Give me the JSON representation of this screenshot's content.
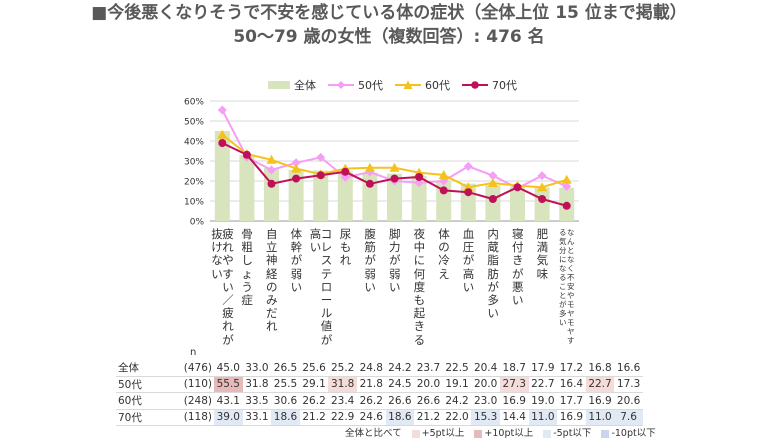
{
  "title_line1": "■今後悪くなりそうで不安を感じている体の症状（全体上位 15 位まで掲載）",
  "title_line2": "50〜79 歳の女性（複数回答）: 476 名",
  "n_header": "n",
  "colors": {
    "all": "#d7e4bd",
    "s50": "#f59ef5",
    "s60": "#f5c21b",
    "s70": "#c0105a",
    "grid": "#d9d9d9"
  },
  "legend": {
    "all": "全体",
    "s50": "50代",
    "s60": "60代",
    "s70": "70代"
  },
  "footer": {
    "base": "全体と比べて",
    "up5": "+5pt以上",
    "up10": "+10pt以上",
    "dn5": "-5pt以下",
    "dn10": "-10pt以下"
  },
  "chart_data": {
    "type": "bar+line",
    "ylim": [
      0,
      60
    ],
    "yticks": [
      "0%",
      "10%",
      "20%",
      "30%",
      "40%",
      "50%",
      "60%"
    ],
    "categories": [
      "疲れやすい／疲れが抜けない",
      "骨粗しょう症",
      "自立神経のみだれ",
      "体幹が弱い",
      "コレステロール値が高い",
      "尿もれ",
      "腹筋が弱い",
      "脚力が弱い",
      "夜中に何度も起きる",
      "体の冷え",
      "血圧が高い",
      "内蔵脂肪が多い",
      "寝付きが悪い",
      "肥満気味",
      "なんとなく不安やモヤモヤする気分になることが多い"
    ],
    "series": [
      {
        "name": "全体",
        "n": "(476)",
        "type": "bar",
        "values": [
          45.0,
          33.0,
          26.5,
          25.6,
          25.2,
          24.8,
          24.2,
          23.7,
          22.5,
          20.4,
          18.7,
          17.9,
          17.2,
          16.8,
          16.6
        ]
      },
      {
        "name": "50代",
        "n": "(110)",
        "type": "line",
        "values": [
          55.5,
          31.8,
          25.5,
          29.1,
          31.8,
          21.8,
          24.5,
          20.0,
          19.1,
          20.0,
          27.3,
          22.7,
          16.4,
          22.7,
          17.3
        ]
      },
      {
        "name": "60代",
        "n": "(248)",
        "type": "line",
        "values": [
          43.1,
          33.5,
          30.6,
          26.2,
          23.4,
          26.2,
          26.6,
          26.6,
          24.2,
          23.0,
          16.9,
          19.0,
          17.7,
          16.9,
          20.6
        ]
      },
      {
        "name": "70代",
        "n": "(118)",
        "type": "line",
        "values": [
          39.0,
          33.1,
          18.6,
          21.2,
          22.9,
          24.6,
          18.6,
          21.2,
          22.0,
          15.3,
          14.4,
          11.0,
          16.9,
          11.0,
          7.6
        ]
      }
    ],
    "table_values": [
      [
        "45.0",
        "33.0",
        "26.5",
        "25.6",
        "25.2",
        "24.8",
        "24.2",
        "23.7",
        "22.5",
        "20.4",
        "18.7",
        "17.9",
        "17.2",
        "16.8",
        "16.6"
      ],
      [
        "55.5",
        "31.8",
        "25.5",
        "29.1",
        "31.8",
        "21.8",
        "24.5",
        "20.0",
        "19.1",
        "20.0",
        "27.3",
        "22.7",
        "16.4",
        "22.7",
        "17.3"
      ],
      [
        "43.1",
        "33.5",
        "30.6",
        "26.2",
        "23.4",
        "26.2",
        "26.6",
        "26.6",
        "24.2",
        "23.0",
        "16.9",
        "19.0",
        "17.7",
        "16.9",
        "20.6"
      ],
      [
        "39.0",
        "33.1",
        "18.6",
        "21.2",
        "22.9",
        "24.6",
        "18.6",
        "21.2",
        "22.0",
        "15.3",
        "14.4",
        "11.0",
        "16.9",
        "11.0",
        "7.6"
      ]
    ]
  }
}
